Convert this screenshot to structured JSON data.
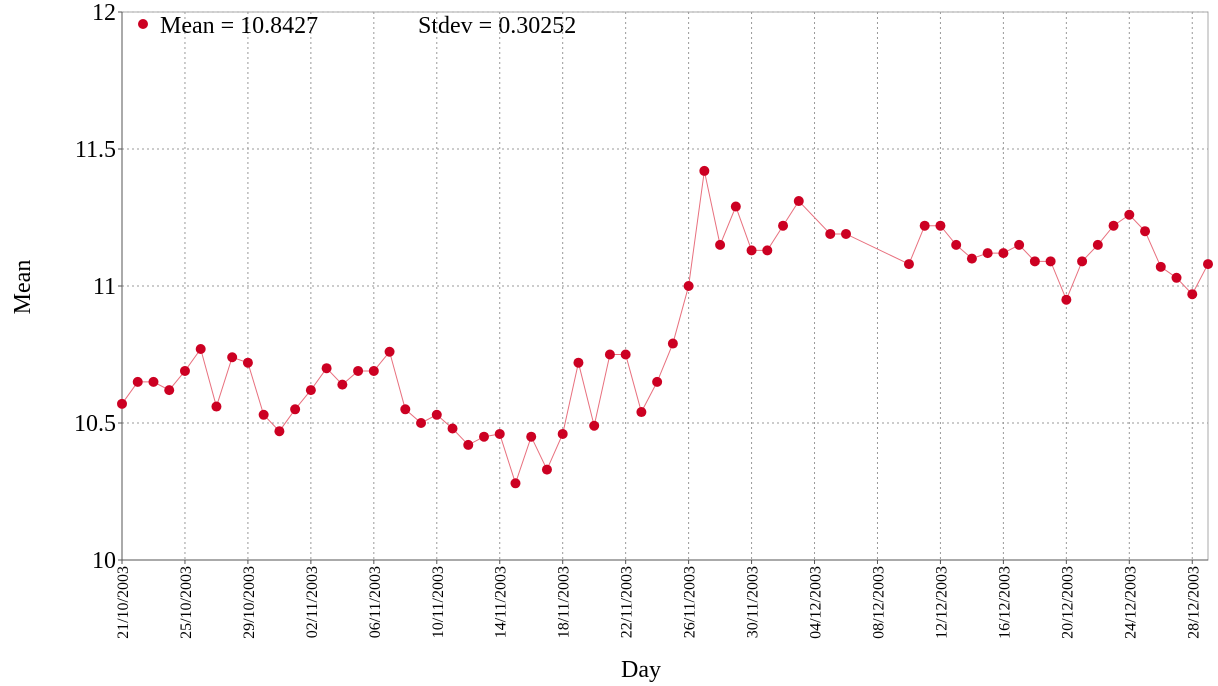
{
  "chart_data": {
    "type": "line",
    "x_label": "Day",
    "y_label": "Mean",
    "annotation": "Stdev = 0.30252",
    "legend": "top-left",
    "grid": true,
    "ylim": [
      10,
      12
    ],
    "yticks": [
      10,
      10.5,
      11,
      11.5,
      12
    ],
    "xlim": [
      "21/10/2003",
      "29/12/2003"
    ],
    "xticks": [
      "21/10/2003",
      "25/10/2003",
      "29/10/2003",
      "02/11/2003",
      "06/11/2003",
      "10/11/2003",
      "14/11/2003",
      "18/11/2003",
      "22/11/2003",
      "26/11/2003",
      "30/11/2003",
      "04/12/2003",
      "08/12/2003",
      "12/12/2003",
      "16/12/2003",
      "20/12/2003",
      "24/12/2003",
      "28/12/2003"
    ],
    "x": [
      "21/10/2003",
      "22/10/2003",
      "23/10/2003",
      "24/10/2003",
      "25/10/2003",
      "26/10/2003",
      "27/10/2003",
      "28/10/2003",
      "29/10/2003",
      "30/10/2003",
      "31/10/2003",
      "01/11/2003",
      "02/11/2003",
      "03/11/2003",
      "04/11/2003",
      "05/11/2003",
      "06/11/2003",
      "07/11/2003",
      "08/11/2003",
      "09/11/2003",
      "10/11/2003",
      "11/11/2003",
      "12/11/2003",
      "13/11/2003",
      "14/11/2003",
      "15/11/2003",
      "16/11/2003",
      "17/11/2003",
      "18/11/2003",
      "19/11/2003",
      "20/11/2003",
      "21/11/2003",
      "22/11/2003",
      "23/11/2003",
      "24/11/2003",
      "25/11/2003",
      "26/11/2003",
      "27/11/2003",
      "28/11/2003",
      "29/11/2003",
      "30/11/2003",
      "01/12/2003",
      "02/12/2003",
      "03/12/2003",
      "05/12/2003",
      "06/12/2003",
      "10/12/2003",
      "11/12/2003",
      "12/12/2003",
      "13/12/2003",
      "14/12/2003",
      "15/12/2003",
      "16/12/2003",
      "17/12/2003",
      "18/12/2003",
      "19/12/2003",
      "20/12/2003",
      "21/12/2003",
      "22/12/2003",
      "23/12/2003",
      "24/12/2003",
      "25/12/2003",
      "26/12/2003",
      "27/12/2003",
      "28/12/2003",
      "29/12/2003"
    ],
    "series": [
      {
        "name": "Mean = 10.8427",
        "color": "#cc0022",
        "line_color": "#e8707e",
        "values": [
          10.57,
          10.65,
          10.65,
          10.62,
          10.69,
          10.77,
          10.56,
          10.74,
          10.72,
          10.53,
          10.47,
          10.55,
          10.62,
          10.7,
          10.64,
          10.69,
          10.69,
          10.76,
          10.55,
          10.5,
          10.53,
          10.48,
          10.42,
          10.45,
          10.46,
          10.28,
          10.45,
          10.33,
          10.46,
          10.72,
          10.49,
          10.75,
          10.75,
          10.54,
          10.65,
          10.79,
          11.0,
          11.42,
          11.15,
          11.29,
          11.13,
          11.13,
          11.22,
          11.31,
          11.19,
          11.19,
          11.08,
          11.22,
          11.22,
          11.15,
          11.1,
          11.12,
          11.12,
          11.15,
          11.09,
          11.09,
          10.95,
          11.09,
          11.15,
          11.22,
          11.26,
          11.2,
          11.07,
          11.03,
          10.97,
          11.08
        ]
      }
    ]
  }
}
